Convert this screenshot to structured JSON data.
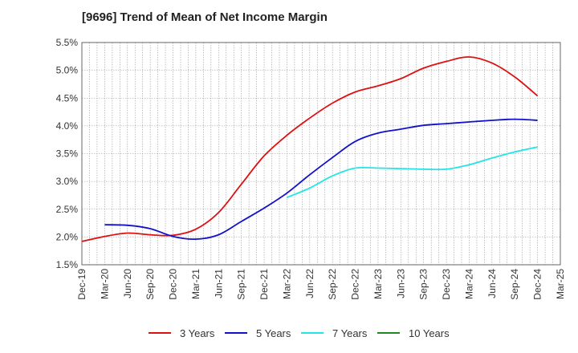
{
  "chart_data": {
    "type": "line",
    "title": "[9696]  Trend of Mean of Net Income Margin",
    "xlabel": "",
    "ylabel": "",
    "x": [
      "Dec-19",
      "Mar-20",
      "Jun-20",
      "Sep-20",
      "Dec-20",
      "Mar-21",
      "Jun-21",
      "Sep-21",
      "Dec-21",
      "Mar-22",
      "Jun-22",
      "Sep-22",
      "Dec-22",
      "Mar-23",
      "Jun-23",
      "Sep-23",
      "Dec-23",
      "Mar-24",
      "Jun-24",
      "Sep-24",
      "Dec-24",
      "Mar-25"
    ],
    "ylim": [
      1.5,
      5.5
    ],
    "yticks": [
      "1.5%",
      "2.0%",
      "2.5%",
      "3.0%",
      "3.5%",
      "4.0%",
      "4.5%",
      "5.0%",
      "5.5%"
    ],
    "ytick_values": [
      1.5,
      2.0,
      2.5,
      3.0,
      3.5,
      4.0,
      4.5,
      5.0,
      5.5
    ],
    "grid": true,
    "legend_position": "bottom",
    "series": [
      {
        "name": "3 Years",
        "color": "#dd1111",
        "values": [
          1.92,
          2.01,
          2.07,
          2.04,
          2.03,
          2.14,
          2.44,
          2.95,
          3.46,
          3.83,
          4.14,
          4.41,
          4.61,
          4.72,
          4.85,
          5.04,
          5.16,
          5.24,
          5.13,
          4.88,
          4.54,
          null
        ]
      },
      {
        "name": "5 Years",
        "color": "#1111cc",
        "values": [
          null,
          2.22,
          2.21,
          2.15,
          2.01,
          1.96,
          2.04,
          2.28,
          2.52,
          2.79,
          3.12,
          3.43,
          3.72,
          3.87,
          3.94,
          4.01,
          4.04,
          4.07,
          4.1,
          4.12,
          4.1,
          null
        ]
      },
      {
        "name": "7 Years",
        "color": "#22e5e5",
        "values": [
          null,
          null,
          null,
          null,
          null,
          null,
          null,
          null,
          null,
          2.71,
          2.88,
          3.1,
          3.24,
          3.24,
          3.23,
          3.22,
          3.22,
          3.3,
          3.42,
          3.53,
          3.62,
          null
        ]
      },
      {
        "name": "10 Years",
        "color": "#228822",
        "values": [
          null,
          null,
          null,
          null,
          null,
          null,
          null,
          null,
          null,
          null,
          null,
          null,
          null,
          null,
          null,
          null,
          null,
          null,
          null,
          null,
          null,
          null
        ]
      }
    ]
  }
}
